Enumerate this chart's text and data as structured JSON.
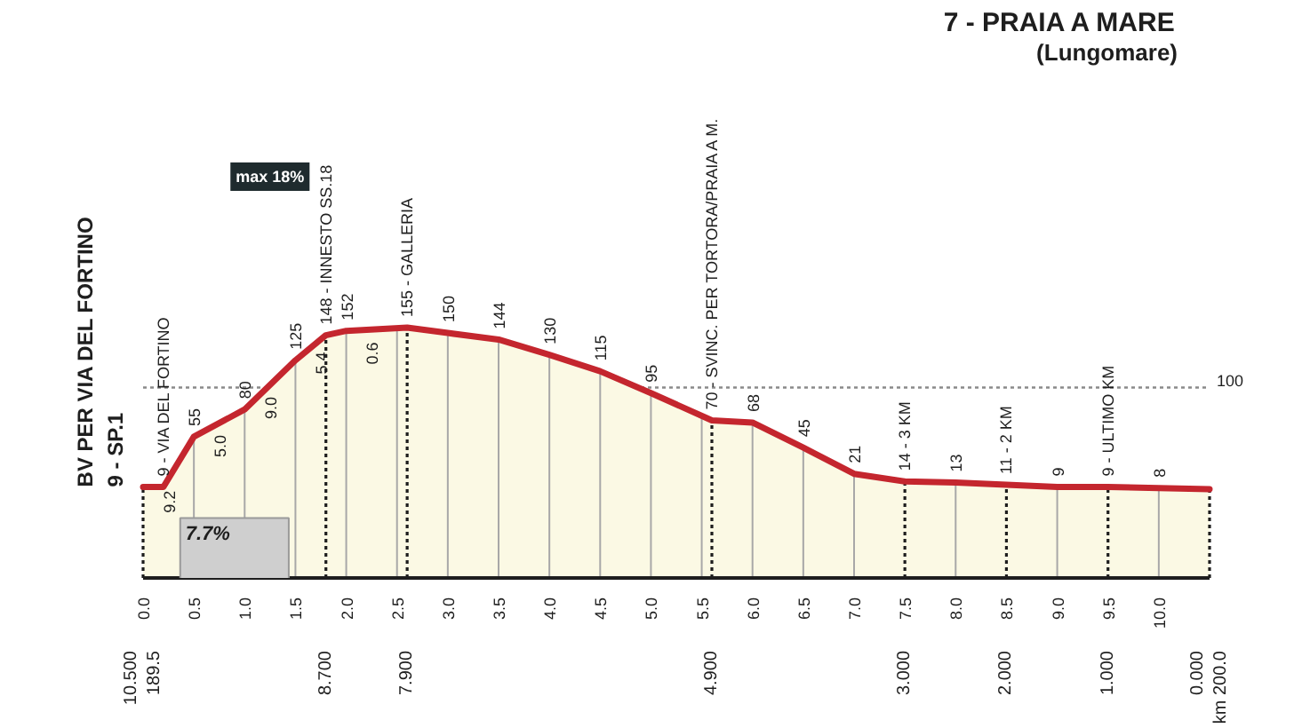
{
  "chart_data": {
    "type": "area",
    "title": "7 - PRAIA A MARE",
    "subtitle": "(Lungomare)",
    "x": [
      0,
      0.2,
      0.5,
      1.0,
      1.5,
      1.8,
      2.0,
      2.6,
      3.0,
      3.5,
      4.0,
      4.5,
      5.0,
      5.6,
      6.0,
      6.5,
      7.0,
      7.5,
      8.0,
      8.5,
      9.0,
      9.5,
      10.0,
      10.5
    ],
    "values": [
      9,
      9,
      55,
      80,
      125,
      148,
      152,
      155,
      150,
      144,
      130,
      115,
      95,
      70,
      68,
      45,
      21,
      14,
      13,
      11,
      9,
      9,
      8,
      7
    ],
    "value_labels": [
      "BV PER VIA DEL FORTINO\n9 - SP.1",
      "9 - VIA DEL FORTINO",
      "55",
      "80",
      "125",
      "148 - INNESTO SS.18",
      "152",
      "155 - GALLERIA",
      "150",
      "144",
      "130",
      "115",
      "95",
      "70 - SVINC. PER TORTORA/PRAIA A M.",
      "68",
      "45",
      "21",
      "14 - 3 KM",
      "13",
      "11 - 2 KM",
      "9",
      "9 - ULTIMO KM",
      "8",
      null
    ],
    "color": "#fbf9e4",
    "xlim": [
      0,
      10.5
    ],
    "xticks": [
      {
        "value": 0,
        "label": "0.0"
      },
      {
        "value": 0.5,
        "label": "0.5"
      },
      {
        "value": 1,
        "label": "1.0"
      },
      {
        "value": 1.5,
        "label": "1.5"
      },
      {
        "value": 2,
        "label": "2.0"
      },
      {
        "value": 2.5,
        "label": "2.5"
      },
      {
        "value": 3,
        "label": "3.0"
      },
      {
        "value": 3.5,
        "label": "3.5"
      },
      {
        "value": 4,
        "label": "4.0"
      },
      {
        "value": 4.5,
        "label": "4.5"
      },
      {
        "value": 5,
        "label": "5.0"
      },
      {
        "value": 5.5,
        "label": "5.5"
      },
      {
        "value": 6,
        "label": "6.0"
      },
      {
        "value": 6.5,
        "label": "6.5"
      },
      {
        "value": 7,
        "label": "7.0"
      },
      {
        "value": 7.5,
        "label": "7.5"
      },
      {
        "value": 8,
        "label": "8.0"
      },
      {
        "value": 8.5,
        "label": "8.5"
      },
      {
        "value": 9,
        "label": "9.0"
      },
      {
        "value": 9.5,
        "label": "9.5"
      },
      {
        "value": 10,
        "label": "10.0"
      }
    ],
    "x2lim": [
      10.5,
      0
    ],
    "x2ticks": [
      {
        "value": 10.5,
        "label": "10.500\n189.5"
      },
      {
        "value": 8.7,
        "label": "8.700"
      },
      {
        "value": 7.9,
        "label": "7.900"
      },
      {
        "value": 4.9,
        "label": "4.900"
      },
      {
        "value": 3,
        "label": "3.000"
      },
      {
        "value": 2,
        "label": "2.000"
      },
      {
        "value": 1,
        "label": "1.000"
      },
      {
        "value": 0,
        "label": "0.000\nkm 200.0"
      }
    ],
    "ref_lines": [
      {
        "axis": "y",
        "value": 100,
        "label": "100",
        "line_style": "dotted"
      }
    ],
    "annotations": [
      "max 18%",
      "7.7%",
      {
        "text": "9.2",
        "x": 0.25,
        "y": 17
      },
      {
        "text": "5.0",
        "x": 0.75,
        "y": 68
      },
      {
        "text": "9.0",
        "x": 1.25,
        "y": 103
      },
      {
        "text": "5.4",
        "x": 1.75,
        "y": 144
      },
      {
        "text": "0.6",
        "x": 2.25,
        "y": 153
      }
    ],
    "grid": true,
    "tick_labels": "x"
  }
}
